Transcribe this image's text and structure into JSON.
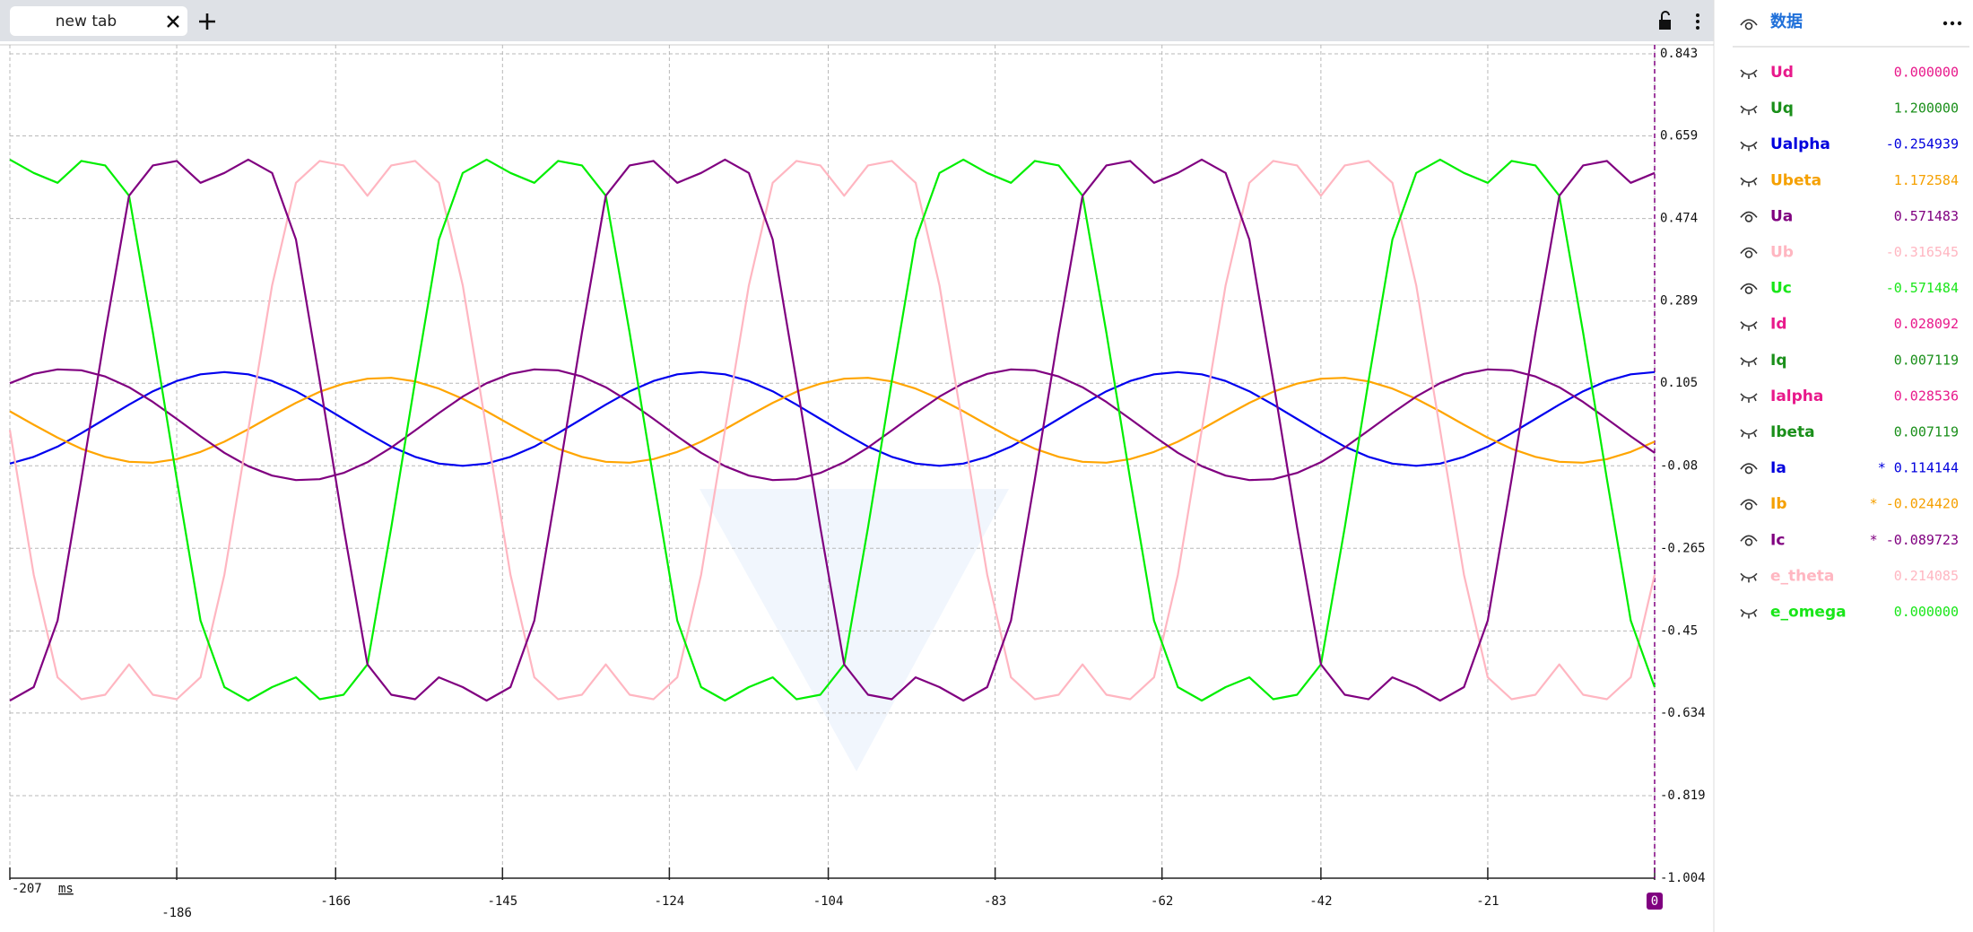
{
  "tab": {
    "title": "new tab"
  },
  "sidebar": {
    "title": "数据",
    "channels": [
      {
        "name": "Ud",
        "value": "0.000000",
        "color": "#e8198b",
        "visible": false
      },
      {
        "name": "Uq",
        "value": "1.200000",
        "color": "#1a8f1a",
        "visible": false
      },
      {
        "name": "Ualpha",
        "value": "-0.254939",
        "color": "#0000dd",
        "visible": false
      },
      {
        "name": "Ubeta",
        "value": "1.172584",
        "color": "#f5a000",
        "visible": false
      },
      {
        "name": "Ua",
        "value": "0.571483",
        "color": "#800080",
        "visible": true
      },
      {
        "name": "Ub",
        "value": "-0.316545",
        "color": "#ffb6c1",
        "visible": true
      },
      {
        "name": "Uc",
        "value": "-0.571484",
        "color": "#19e619",
        "visible": true
      },
      {
        "name": "Id",
        "value": "0.028092",
        "color": "#e8198b",
        "visible": false
      },
      {
        "name": "Iq",
        "value": "0.007119",
        "color": "#1a8f1a",
        "visible": false
      },
      {
        "name": "Ialpha",
        "value": "0.028536",
        "color": "#e8198b",
        "visible": false
      },
      {
        "name": "Ibeta",
        "value": "0.007119",
        "color": "#1a8f1a",
        "visible": false
      },
      {
        "name": "Ia",
        "value": "* 0.114144",
        "color": "#0000dd",
        "visible": true
      },
      {
        "name": "Ib",
        "value": "* -0.024420",
        "color": "#f5a000",
        "visible": true
      },
      {
        "name": "Ic",
        "value": "* -0.089723",
        "color": "#800080",
        "visible": true
      },
      {
        "name": "e_theta",
        "value": "0.214085",
        "color": "#ffb6c1",
        "visible": false
      },
      {
        "name": "e_omega",
        "value": "0.000000",
        "color": "#19e619",
        "visible": false
      }
    ]
  },
  "chart_data": {
    "type": "line",
    "xlabel": "ms",
    "x": [
      -207,
      -204,
      -201,
      -198,
      -195,
      -192,
      -189,
      -186,
      -183,
      -180,
      -177,
      -174,
      -171,
      -168,
      -165,
      -162,
      -159,
      -156,
      -153,
      -150,
      -147,
      -144,
      -141,
      -138,
      -135,
      -132,
      -129,
      -126,
      -123,
      -120,
      -117,
      -114,
      -111,
      -108,
      -105,
      -102,
      -99,
      -96,
      -93,
      -90,
      -87,
      -84,
      -81,
      -78,
      -75,
      -72,
      -69,
      -66,
      -63,
      -60,
      -57,
      -54,
      -51,
      -48,
      -45,
      -42,
      -39,
      -36,
      -33,
      -30,
      -27,
      -24,
      -21,
      -18,
      -15,
      -12,
      -9,
      -6,
      -3,
      0
    ],
    "xlim": [
      -207,
      0
    ],
    "xticks": [
      -207,
      -186,
      -166,
      -145,
      -124,
      -104,
      -83,
      -62,
      -42,
      -21,
      0
    ],
    "ylim": [
      -1.004,
      0.843
    ],
    "yticks": [
      0.843,
      0.659,
      0.474,
      0.289,
      0.105,
      -0.08,
      -0.265,
      -0.45,
      -0.634,
      -0.819,
      -1.004
    ],
    "grid": true,
    "series": [
      {
        "color": "#0000ee",
        "values": [
          -0.075,
          -0.06,
          -0.037,
          -0.007,
          0.025,
          0.057,
          0.087,
          0.11,
          0.125,
          0.13,
          0.125,
          0.11,
          0.087,
          0.057,
          0.025,
          -0.007,
          -0.037,
          -0.06,
          -0.075,
          -0.08,
          -0.075,
          -0.06,
          -0.037,
          -0.007,
          0.025,
          0.057,
          0.087,
          0.11,
          0.125,
          0.13,
          0.125,
          0.11,
          0.087,
          0.057,
          0.025,
          -0.007,
          -0.037,
          -0.06,
          -0.075,
          -0.08,
          -0.075,
          -0.06,
          -0.037,
          -0.007,
          0.025,
          0.057,
          0.087,
          0.11,
          0.125,
          0.13,
          0.125,
          0.11,
          0.087,
          0.057,
          0.025,
          -0.007,
          -0.037,
          -0.06,
          -0.075,
          -0.08,
          -0.075,
          -0.06,
          -0.037,
          -0.007,
          0.025,
          0.057,
          0.087,
          0.11,
          0.125,
          0.13
        ]
      },
      {
        "color": "#ffa500",
        "values": [
          0.042,
          0.012,
          -0.017,
          -0.042,
          -0.06,
          -0.071,
          -0.073,
          -0.065,
          -0.049,
          -0.026,
          0.002,
          0.032,
          0.061,
          0.086,
          0.104,
          0.115,
          0.117,
          0.109,
          0.093,
          0.07,
          0.042,
          0.012,
          -0.017,
          -0.042,
          -0.06,
          -0.071,
          -0.073,
          -0.065,
          -0.049,
          -0.026,
          0.002,
          0.032,
          0.061,
          0.086,
          0.104,
          0.115,
          0.117,
          0.109,
          0.093,
          0.07,
          0.042,
          0.012,
          -0.017,
          -0.042,
          -0.06,
          -0.071,
          -0.073,
          -0.065,
          -0.049,
          -0.026,
          0.002,
          0.032,
          0.061,
          0.086,
          0.104,
          0.115,
          0.117,
          0.109,
          0.093,
          0.07,
          0.042,
          0.012,
          -0.017,
          -0.042,
          -0.06,
          -0.071,
          -0.073,
          -0.065,
          -0.049,
          -0.026
        ]
      },
      {
        "color": "#800080",
        "values": [
          0.105,
          0.126,
          0.136,
          0.134,
          0.12,
          0.096,
          0.063,
          0.025,
          -0.014,
          -0.051,
          -0.081,
          -0.102,
          -0.112,
          -0.11,
          -0.096,
          -0.072,
          -0.039,
          -0.001,
          0.038,
          0.075,
          0.105,
          0.126,
          0.136,
          0.134,
          0.12,
          0.096,
          0.063,
          0.025,
          -0.014,
          -0.051,
          -0.081,
          -0.102,
          -0.112,
          -0.11,
          -0.096,
          -0.072,
          -0.039,
          -0.001,
          0.038,
          0.075,
          0.105,
          0.126,
          0.136,
          0.134,
          0.12,
          0.096,
          0.063,
          0.025,
          -0.014,
          -0.051,
          -0.081,
          -0.102,
          -0.112,
          -0.11,
          -0.096,
          -0.072,
          -0.039,
          -0.001,
          0.038,
          0.075,
          0.105,
          0.126,
          0.136,
          0.134,
          0.12,
          0.096,
          0.063,
          0.025,
          -0.014,
          -0.051
        ]
      },
      {
        "color": "#ffb6c1",
        "values": [
          0,
          -0.324,
          -0.554,
          -0.603,
          -0.593,
          -0.525,
          -0.593,
          -0.603,
          -0.554,
          -0.324,
          0,
          0.324,
          0.554,
          0.603,
          0.593,
          0.525,
          0.593,
          0.603,
          0.554,
          0.324,
          0,
          -0.324,
          -0.554,
          -0.603,
          -0.593,
          -0.525,
          -0.593,
          -0.603,
          -0.554,
          -0.324,
          0,
          0.324,
          0.554,
          0.603,
          0.593,
          0.525,
          0.593,
          0.603,
          0.554,
          0.324,
          0,
          -0.324,
          -0.554,
          -0.603,
          -0.593,
          -0.525,
          -0.593,
          -0.603,
          -0.554,
          -0.324,
          0,
          0.324,
          0.554,
          0.603,
          0.593,
          0.525,
          0.593,
          0.603,
          0.554,
          0.324,
          0,
          -0.324,
          -0.554,
          -0.603,
          -0.593,
          -0.525,
          -0.593,
          -0.603,
          -0.554,
          -0.324
        ]
      },
      {
        "color": "#00ee00",
        "values": [
          0.606,
          0.576,
          0.554,
          0.603,
          0.593,
          0.525,
          0.218,
          -0.11,
          -0.427,
          -0.576,
          -0.606,
          -0.576,
          -0.554,
          -0.603,
          -0.593,
          -0.525,
          -0.218,
          0.11,
          0.427,
          0.576,
          0.606,
          0.576,
          0.554,
          0.603,
          0.593,
          0.525,
          0.218,
          -0.11,
          -0.427,
          -0.576,
          -0.606,
          -0.576,
          -0.554,
          -0.603,
          -0.593,
          -0.525,
          -0.218,
          0.11,
          0.427,
          0.576,
          0.606,
          0.576,
          0.554,
          0.603,
          0.593,
          0.525,
          0.218,
          -0.11,
          -0.427,
          -0.576,
          -0.606,
          -0.576,
          -0.554,
          -0.603,
          -0.593,
          -0.525,
          -0.218,
          0.11,
          0.427,
          0.576,
          0.606,
          0.576,
          0.554,
          0.603,
          0.593,
          0.525,
          0.218,
          -0.11,
          -0.427,
          -0.576
        ]
      },
      {
        "color": "#800080",
        "values": [
          -0.606,
          -0.576,
          -0.427,
          -0.11,
          0.218,
          0.525,
          0.593,
          0.603,
          0.554,
          0.576,
          0.606,
          0.576,
          0.427,
          0.11,
          -0.218,
          -0.525,
          -0.593,
          -0.603,
          -0.554,
          -0.576,
          -0.606,
          -0.576,
          -0.427,
          -0.11,
          0.218,
          0.525,
          0.593,
          0.603,
          0.554,
          0.576,
          0.606,
          0.576,
          0.427,
          0.11,
          -0.218,
          -0.525,
          -0.593,
          -0.603,
          -0.554,
          -0.576,
          -0.606,
          -0.576,
          -0.427,
          -0.11,
          0.218,
          0.525,
          0.593,
          0.603,
          0.554,
          0.576,
          0.606,
          0.576,
          0.427,
          0.11,
          -0.218,
          -0.525,
          -0.593,
          -0.603,
          -0.554,
          -0.576,
          -0.606,
          -0.576,
          -0.427,
          -0.11,
          0.218,
          0.525,
          0.593,
          0.603,
          0.554,
          0.576
        ]
      }
    ]
  }
}
